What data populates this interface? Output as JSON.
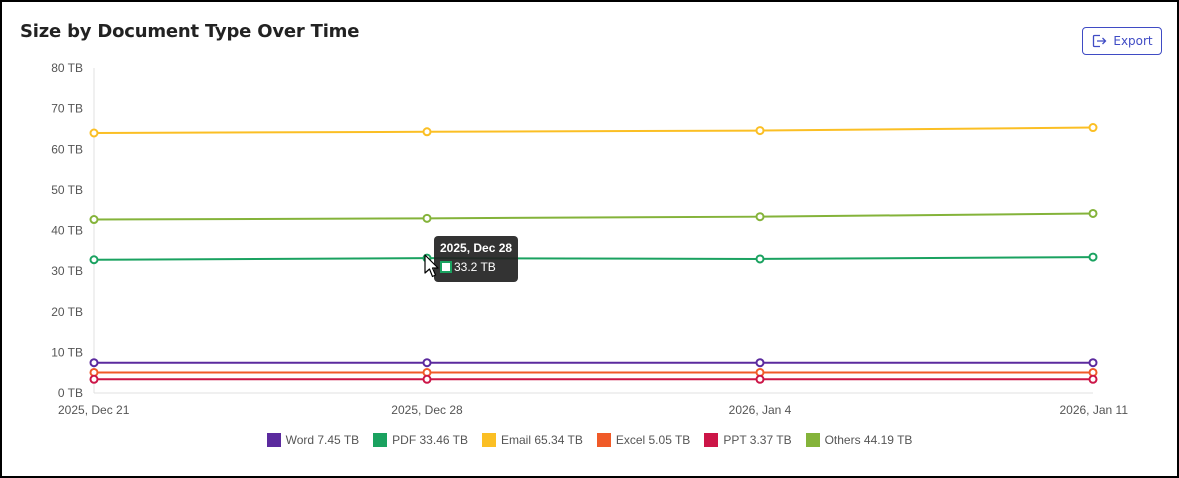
{
  "header": {
    "title": "Size by Document Type Over Time",
    "export_label": "Export",
    "export_icon": "export-icon"
  },
  "tooltip": {
    "title": "2025, Dec 28",
    "value": "33.2 TB",
    "series": "PDF"
  },
  "legend": [
    {
      "label": "Word 7.45 TB",
      "color": "#5b2a9e"
    },
    {
      "label": "PDF 33.46 TB",
      "color": "#1aa260"
    },
    {
      "label": "Email 65.34 TB",
      "color": "#fbbf24"
    },
    {
      "label": "Excel 5.05 TB",
      "color": "#f05a28"
    },
    {
      "label": "PPT 3.37 TB",
      "color": "#cc1547"
    },
    {
      "label": "Others 44.19 TB",
      "color": "#84b33a"
    }
  ],
  "chart_data": {
    "type": "line",
    "title": "Size by Document Type Over Time",
    "xlabel": "",
    "ylabel": "",
    "x": [
      "2025, Dec 21",
      "2025, Dec 28",
      "2026, Jan 4",
      "2026, Jan 11"
    ],
    "y_ticks": [
      "0 TB",
      "10 TB",
      "20 TB",
      "30 TB",
      "40 TB",
      "50 TB",
      "60 TB",
      "70 TB",
      "80 TB"
    ],
    "ylim": [
      0,
      80
    ],
    "unit": "TB",
    "grid": false,
    "legend_position": "bottom",
    "series": [
      {
        "name": "Word",
        "color": "#5b2a9e",
        "values": [
          7.45,
          7.45,
          7.45,
          7.45
        ]
      },
      {
        "name": "PDF",
        "color": "#1aa260",
        "values": [
          32.8,
          33.2,
          33.0,
          33.46
        ]
      },
      {
        "name": "Email",
        "color": "#fbbf24",
        "values": [
          64.0,
          64.3,
          64.6,
          65.34
        ]
      },
      {
        "name": "Excel",
        "color": "#f05a28",
        "values": [
          5.05,
          5.05,
          5.05,
          5.05
        ]
      },
      {
        "name": "PPT",
        "color": "#cc1547",
        "values": [
          3.37,
          3.37,
          3.37,
          3.37
        ]
      },
      {
        "name": "Others",
        "color": "#84b33a",
        "values": [
          42.7,
          43.0,
          43.4,
          44.19
        ]
      }
    ]
  }
}
